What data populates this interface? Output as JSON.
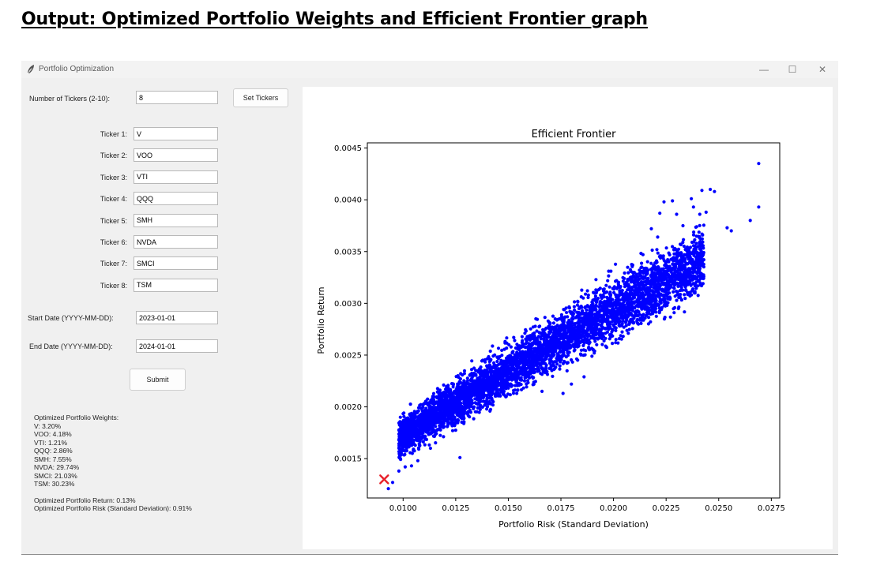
{
  "heading": "Output: Optimized Portfolio Weights and Efficient Frontier graph",
  "window": {
    "title": "Portfolio Optimization",
    "icons": {
      "app": "feather-icon",
      "minimize": "minimize-icon",
      "maximize": "maximize-icon",
      "close": "close-icon"
    },
    "glyphs": {
      "minimize": "—",
      "maximize": "☐",
      "close": "✕"
    }
  },
  "form": {
    "num_tickers_label": "Number of Tickers (2-10):",
    "num_tickers_value": "8",
    "set_tickers_label": "Set Tickers",
    "tickers": [
      {
        "label": "Ticker 1:",
        "value": "V"
      },
      {
        "label": "Ticker 2:",
        "value": "VOO"
      },
      {
        "label": "Ticker 3:",
        "value": "VTI"
      },
      {
        "label": "Ticker 4:",
        "value": "QQQ"
      },
      {
        "label": "Ticker 5:",
        "value": "SMH"
      },
      {
        "label": "Ticker 6:",
        "value": "NVDA"
      },
      {
        "label": "Ticker 7:",
        "value": "SMCI"
      },
      {
        "label": "Ticker 8:",
        "value": "TSM"
      }
    ],
    "start_date_label": "Start Date (YYYY-MM-DD):",
    "start_date_value": "2023-01-01",
    "end_date_label": "End Date (YYYY-MM-DD):",
    "end_date_value": "2024-01-01",
    "submit_label": "Submit"
  },
  "results": {
    "header": "Optimized Portfolio Weights:",
    "weights": [
      "V: 3.20%",
      "VOO: 4.18%",
      "VTI: 1.21%",
      "QQQ: 2.86%",
      "SMH: 7.55%",
      "NVDA: 29.74%",
      "SMCI: 21.03%",
      "TSM: 30.23%"
    ],
    "return_line": "Optimized Portfolio Return: 0.13%",
    "risk_line": "Optimized Portfolio Risk (Standard Deviation): 0.91%"
  },
  "chart_data": {
    "type": "scatter",
    "title": "Efficient Frontier",
    "xlabel": "Portfolio Risk (Standard Deviation)",
    "ylabel": "Portfolio Return",
    "xlim": [
      0.0083,
      0.0279
    ],
    "ylim": [
      0.00112,
      0.00455
    ],
    "xticks": [
      "0.0100",
      "0.0125",
      "0.0150",
      "0.0175",
      "0.0200",
      "0.0225",
      "0.0250",
      "0.0275"
    ],
    "xtick_values": [
      0.01,
      0.0125,
      0.015,
      0.0175,
      0.02,
      0.0225,
      0.025,
      0.0275
    ],
    "yticks": [
      "0.0015",
      "0.0020",
      "0.0025",
      "0.0030",
      "0.0035",
      "0.0040",
      "0.0045"
    ],
    "ytick_values": [
      0.0015,
      0.002,
      0.0025,
      0.003,
      0.0035,
      0.004,
      0.0045
    ],
    "grid": false,
    "point_color": "#0000ff",
    "marker_color": "#e8202a",
    "optimal_point": {
      "x": 0.0091,
      "y": 0.0013
    },
    "series": [
      {
        "points": [
          [
            0.0269,
            0.00435
          ],
          [
            0.0269,
            0.00393
          ],
          [
            0.0265,
            0.0038
          ],
          [
            0.0256,
            0.0037
          ],
          [
            0.0254,
            0.00373
          ],
          [
            0.0246,
            0.0041
          ],
          [
            0.0248,
            0.00408
          ],
          [
            0.0242,
            0.00409
          ],
          [
            0.0244,
            0.00388
          ],
          [
            0.0241,
            0.00386
          ],
          [
            0.0238,
            0.00393
          ],
          [
            0.0237,
            0.00401
          ],
          [
            0.0233,
            0.00375
          ],
          [
            0.023,
            0.00386
          ],
          [
            0.0228,
            0.00399
          ],
          [
            0.0224,
            0.00398
          ],
          [
            0.0222,
            0.00387
          ],
          [
            0.0218,
            0.00372
          ],
          [
            0.0221,
            0.00364
          ],
          [
            0.0213,
            0.0033
          ],
          [
            0.0208,
            0.00325
          ],
          [
            0.0214,
            0.00347
          ],
          [
            0.0198,
            0.003
          ],
          [
            0.0191,
            0.00285
          ],
          [
            0.0185,
            0.00282
          ],
          [
            0.016,
            0.00228
          ],
          [
            0.0154,
            0.00213
          ],
          [
            0.0149,
            0.0021
          ],
          [
            0.0141,
            0.00205
          ],
          [
            0.0132,
            0.00195
          ],
          [
            0.0121,
            0.00181
          ],
          [
            0.0127,
            0.00151
          ],
          [
            0.0113,
            0.0016
          ],
          [
            0.0107,
            0.00148
          ],
          [
            0.0104,
            0.00143
          ],
          [
            0.0101,
            0.00142
          ],
          [
            0.0098,
            0.00138
          ],
          [
            0.0095,
            0.00127
          ],
          [
            0.0093,
            0.00121
          ],
          [
            0.018,
            0.00222
          ],
          [
            0.0166,
            0.00215
          ],
          [
            0.0176,
            0.00213
          ],
          [
            0.0186,
            0.00229
          ],
          [
            0.0192,
            0.0026
          ],
          [
            0.0201,
            0.00262
          ]
        ]
      }
    ],
    "cloud": {
      "x_min": 0.0098,
      "x_max": 0.0243,
      "return_intercept": 0.000305,
      "return_slope": 0.1505,
      "return_curve": -0.93,
      "spread": 0.000145,
      "count": 5000
    }
  }
}
